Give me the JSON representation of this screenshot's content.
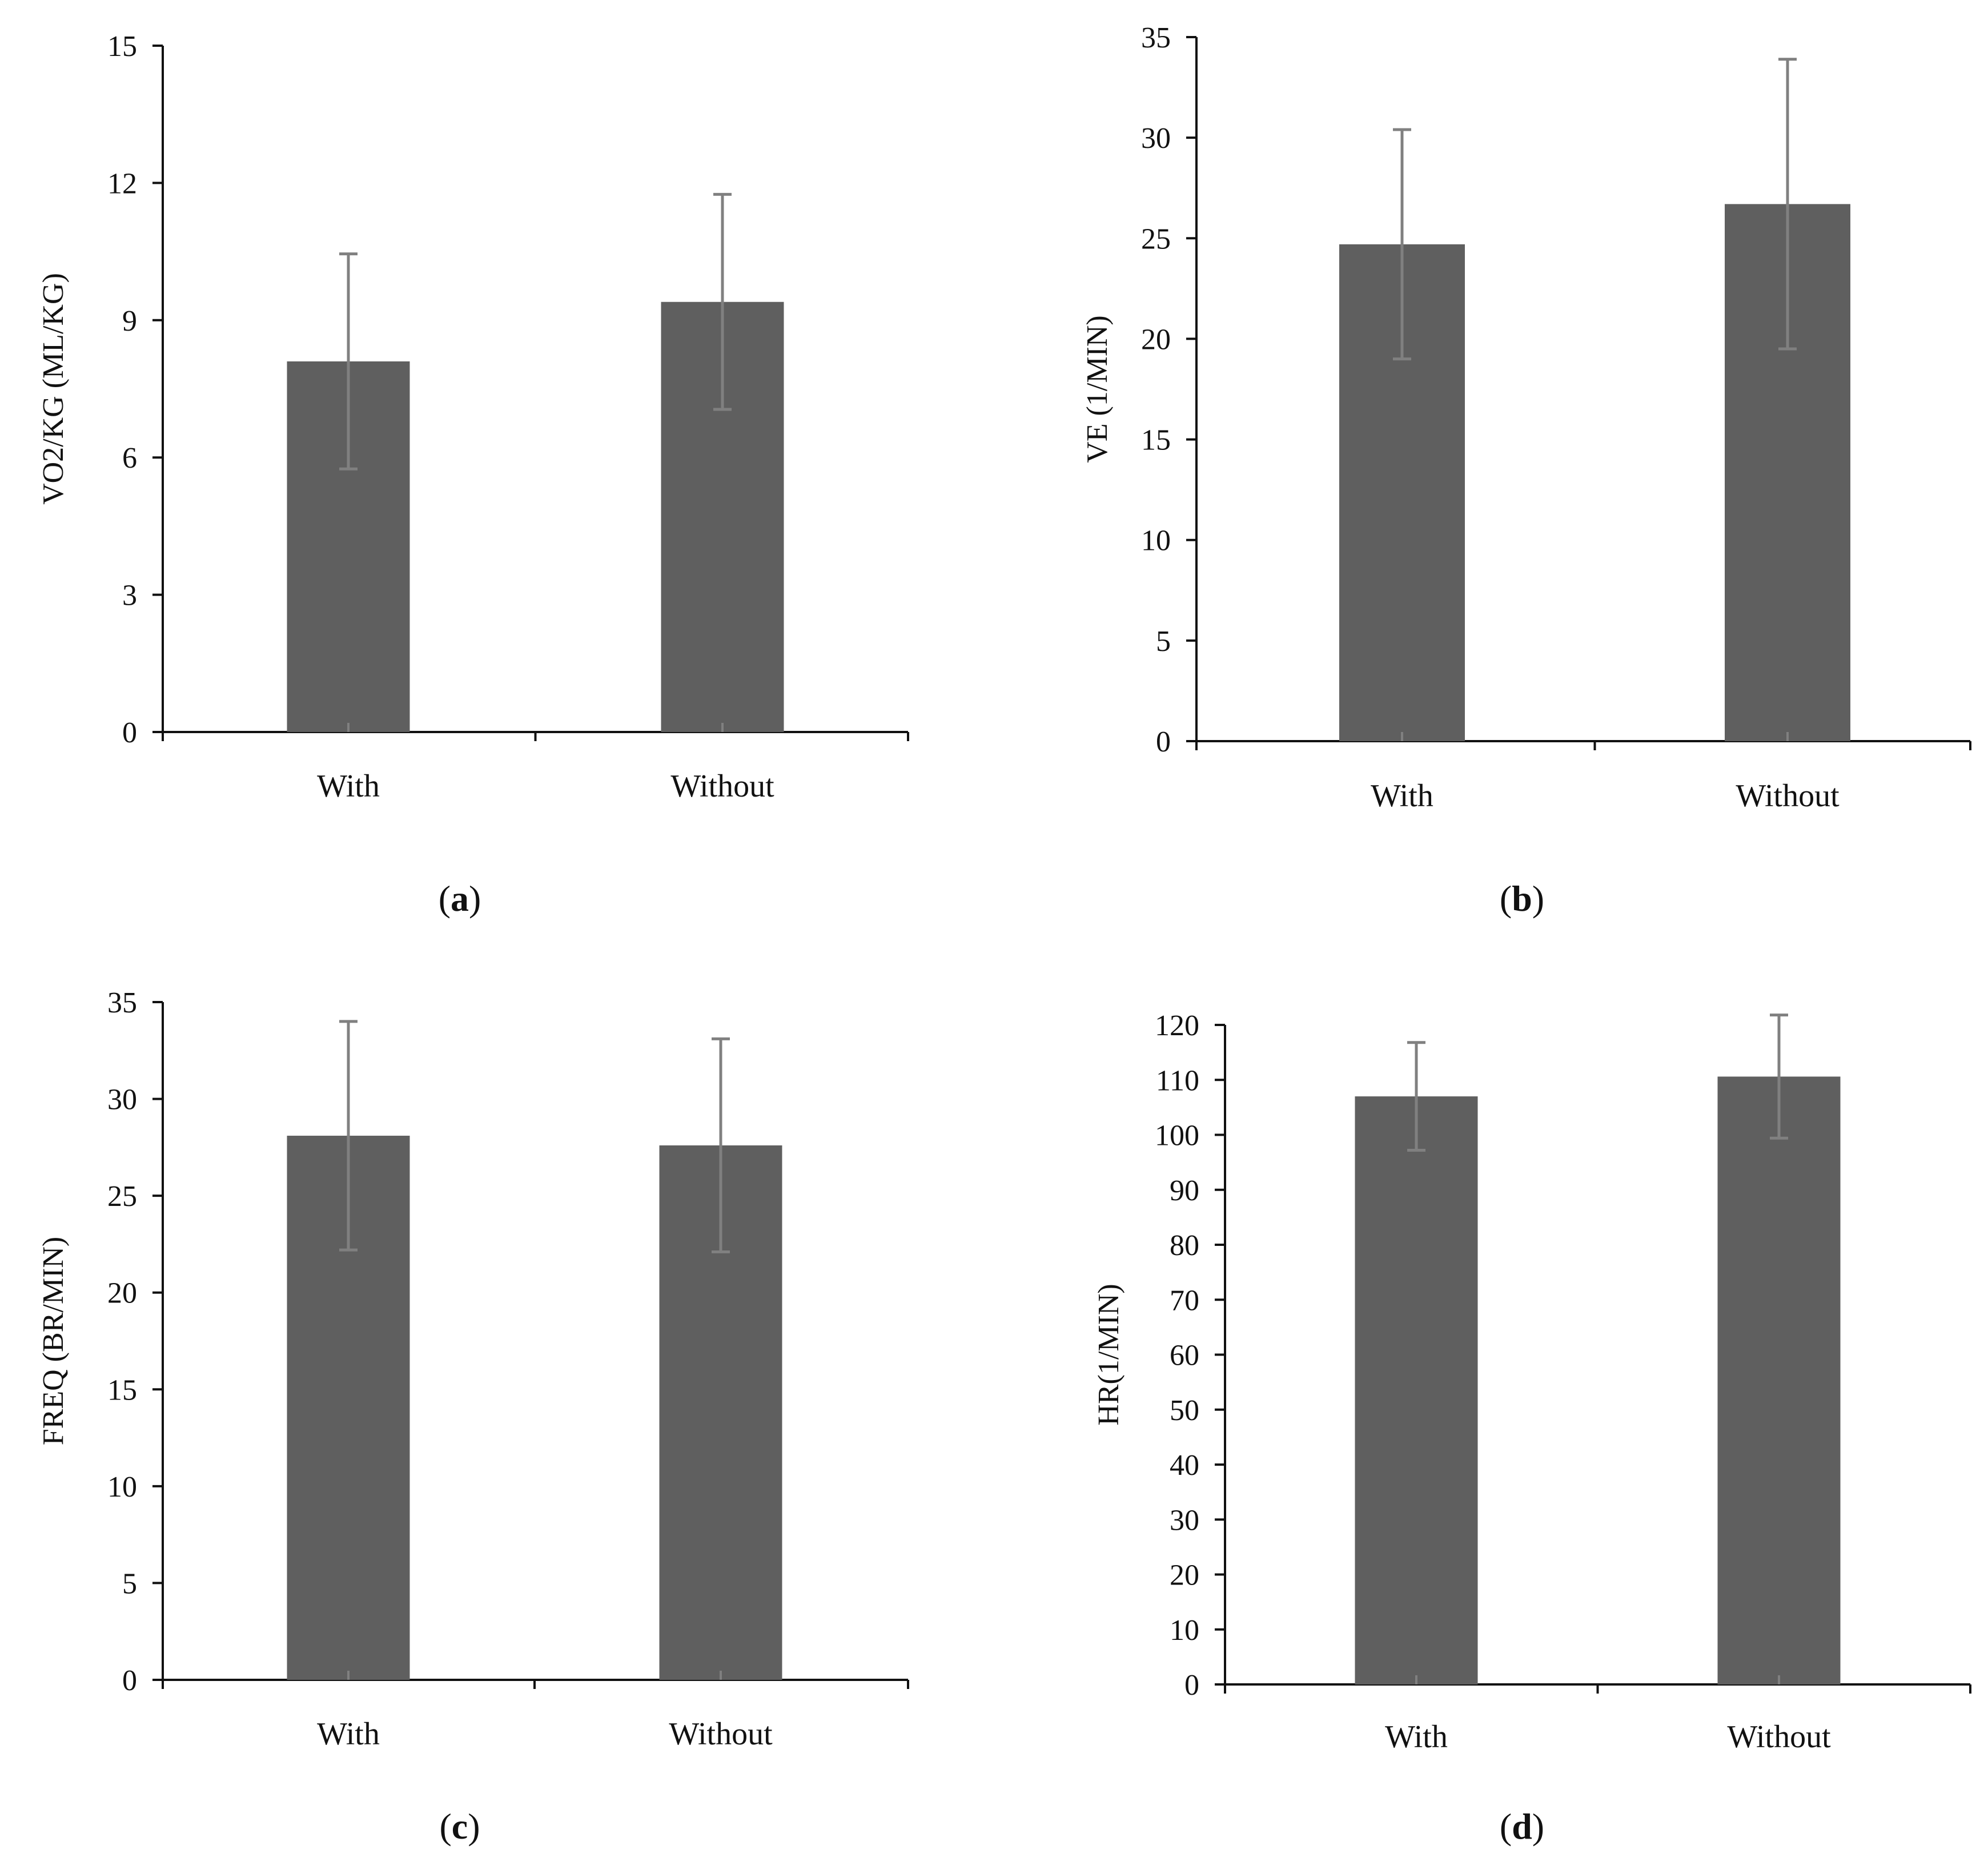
{
  "colors": {
    "bar": "#5f5f5f",
    "error_bar": "#808080",
    "axis": "#111111"
  },
  "chart_data": [
    {
      "type": "bar",
      "panel": "a",
      "categories": [
        "With",
        "Without"
      ],
      "values": [
        8.1,
        9.4
      ],
      "errors": [
        2.35,
        2.35
      ],
      "ylabel": "VO2/KG (ML/KG)",
      "ylim": [
        0,
        15
      ],
      "yticks": [
        "0",
        "3",
        "6",
        "9",
        "12",
        "15"
      ],
      "ytick_values": [
        0,
        3,
        6,
        9,
        12,
        15
      ],
      "caption_open": "(",
      "caption_letter": "a",
      "caption_close": ")"
    },
    {
      "type": "bar",
      "panel": "b",
      "categories": [
        "With",
        "Without"
      ],
      "values": [
        24.7,
        26.7
      ],
      "errors": [
        5.7,
        7.2
      ],
      "ylabel": "VE (1/MIN)",
      "ylim": [
        0,
        35
      ],
      "yticks": [
        "0",
        "5",
        "10",
        "15",
        "20",
        "25",
        "30",
        "35"
      ],
      "ytick_values": [
        0,
        5,
        10,
        15,
        20,
        25,
        30,
        35
      ],
      "caption_open": "(",
      "caption_letter": "b",
      "caption_close": ")"
    },
    {
      "type": "bar",
      "panel": "c",
      "categories": [
        "With",
        "Without"
      ],
      "values": [
        28.1,
        27.6
      ],
      "errors": [
        5.9,
        5.5
      ],
      "ylabel": "FREQ (BR/MIN)",
      "ylim": [
        0,
        35
      ],
      "yticks": [
        "0",
        "5",
        "10",
        "15",
        "20",
        "25",
        "30",
        "35"
      ],
      "ytick_values": [
        0,
        5,
        10,
        15,
        20,
        25,
        30,
        35
      ],
      "caption_open": "(",
      "caption_letter": "c",
      "caption_close": ")"
    },
    {
      "type": "bar",
      "panel": "d",
      "categories": [
        "With",
        "Without"
      ],
      "values": [
        107,
        110.6
      ],
      "errors": [
        9.8,
        11.2
      ],
      "ylabel": "HR(1/MIN)",
      "ylim": [
        0,
        120
      ],
      "yticks": [
        "0",
        "10",
        "20",
        "30",
        "40",
        "50",
        "60",
        "70",
        "80",
        "90",
        "100",
        "110",
        "120"
      ],
      "ytick_values": [
        0,
        10,
        20,
        30,
        40,
        50,
        60,
        70,
        80,
        90,
        100,
        110,
        120
      ],
      "caption_open": "(",
      "caption_letter": "d",
      "caption_close": ")"
    }
  ]
}
